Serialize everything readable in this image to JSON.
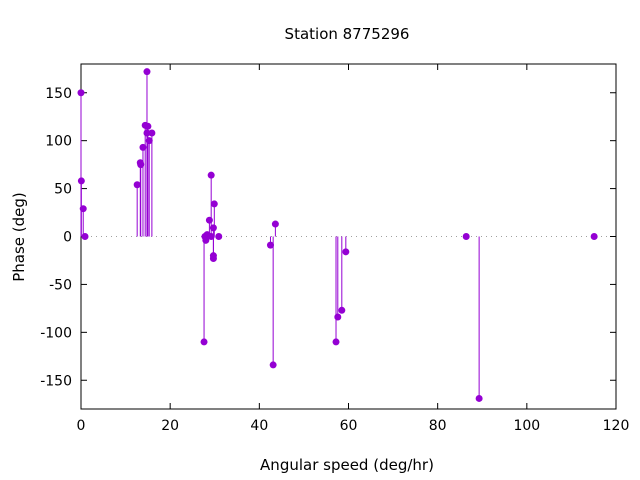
{
  "chart_data": {
    "type": "scatter",
    "style": "impulses-with-points",
    "title": "Station 8775296",
    "xlabel": "Angular speed (deg/hr)",
    "ylabel": "Phase (deg)",
    "xlim": [
      0,
      120
    ],
    "ylim": [
      -180,
      180
    ],
    "xticks": [
      0,
      20,
      40,
      60,
      80,
      100,
      120
    ],
    "yticks": [
      -150,
      -100,
      -50,
      0,
      50,
      100,
      150
    ],
    "grid": false,
    "zero_line": true,
    "color": "#9400d3",
    "points": [
      {
        "x": 0.0,
        "y": 150
      },
      {
        "x": 0.08,
        "y": 58
      },
      {
        "x": 0.5,
        "y": 29
      },
      {
        "x": 0.9,
        "y": 0
      },
      {
        "x": 12.6,
        "y": 54
      },
      {
        "x": 13.3,
        "y": 77
      },
      {
        "x": 13.4,
        "y": 75
      },
      {
        "x": 13.9,
        "y": 93
      },
      {
        "x": 14.4,
        "y": 116
      },
      {
        "x": 14.8,
        "y": 172
      },
      {
        "x": 14.8,
        "y": 108
      },
      {
        "x": 15.0,
        "y": 115
      },
      {
        "x": 15.3,
        "y": 100
      },
      {
        "x": 15.9,
        "y": 108
      },
      {
        "x": 27.6,
        "y": -110
      },
      {
        "x": 27.8,
        "y": 0
      },
      {
        "x": 28.0,
        "y": -4
      },
      {
        "x": 28.3,
        "y": 2
      },
      {
        "x": 28.8,
        "y": 17
      },
      {
        "x": 29.2,
        "y": 64
      },
      {
        "x": 29.2,
        "y": 0
      },
      {
        "x": 29.7,
        "y": 9
      },
      {
        "x": 29.9,
        "y": 34
      },
      {
        "x": 29.7,
        "y": -20
      },
      {
        "x": 29.7,
        "y": -23
      },
      {
        "x": 30.9,
        "y": 0
      },
      {
        "x": 42.5,
        "y": -9
      },
      {
        "x": 43.1,
        "y": -134
      },
      {
        "x": 43.6,
        "y": 13
      },
      {
        "x": 57.2,
        "y": -110
      },
      {
        "x": 57.6,
        "y": -84
      },
      {
        "x": 58.5,
        "y": -77
      },
      {
        "x": 59.4,
        "y": -16
      },
      {
        "x": 86.4,
        "y": 0
      },
      {
        "x": 89.3,
        "y": -169
      },
      {
        "x": 115.1,
        "y": 0
      }
    ]
  }
}
